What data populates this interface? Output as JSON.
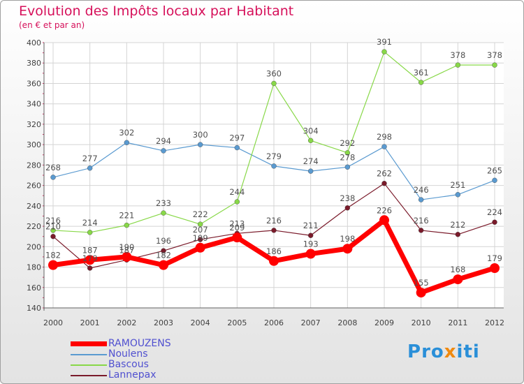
{
  "title": "Evolution des Impôts locaux par Habitant",
  "subtitle": "(en € et par an)",
  "logo": {
    "letters": [
      "P",
      "r",
      "o",
      "x",
      "i",
      "t",
      "i"
    ],
    "colors": [
      "#2a8fd8",
      "#2a8fd8",
      "#2a8fd8",
      "#f08a10",
      "#2a8fd8",
      "#2a8fd8",
      "#2a8fd8"
    ]
  },
  "chart_data": {
    "type": "line",
    "title": "Evolution des Impôts locaux par Habitant",
    "subtitle": "(en € et par an)",
    "x": [
      "2000",
      "2001",
      "2002",
      "2003",
      "2004",
      "2005",
      "2006",
      "2007",
      "2008",
      "2009",
      "2010",
      "2011",
      "2012"
    ],
    "ylim": [
      140,
      400
    ],
    "yticks": [
      140,
      160,
      180,
      200,
      220,
      240,
      260,
      280,
      300,
      320,
      340,
      360,
      380,
      400
    ],
    "grid": true,
    "legend_position": "bottom-left",
    "series": [
      {
        "name": "RAMOUZENS",
        "color": "#ff0000",
        "width": 7,
        "marker": 7,
        "label_color": "#505050",
        "values": [
          182,
          187,
          190,
          182,
          199,
          209,
          186,
          193,
          198,
          226,
          155,
          168,
          179
        ]
      },
      {
        "name": "Noulens",
        "color": "#5a9ad0",
        "width": 1.2,
        "marker": 3.5,
        "label_color": "#505050",
        "values": [
          268,
          277,
          302,
          294,
          300,
          297,
          279,
          274,
          278,
          298,
          246,
          251,
          265
        ]
      },
      {
        "name": "Bascous",
        "color": "#88d848",
        "width": 1.2,
        "marker": 3.5,
        "label_color": "#505050",
        "values": [
          216,
          214,
          221,
          233,
          222,
          244,
          360,
          304,
          292,
          391,
          361,
          378,
          378
        ]
      },
      {
        "name": "Lannepax",
        "color": "#7a1a2a",
        "width": 1.2,
        "marker": 3.5,
        "label_color": "#505050",
        "values": [
          210,
          179,
          187,
          196,
          207,
          213,
          216,
          211,
          238,
          262,
          216,
          212,
          224
        ]
      }
    ]
  }
}
